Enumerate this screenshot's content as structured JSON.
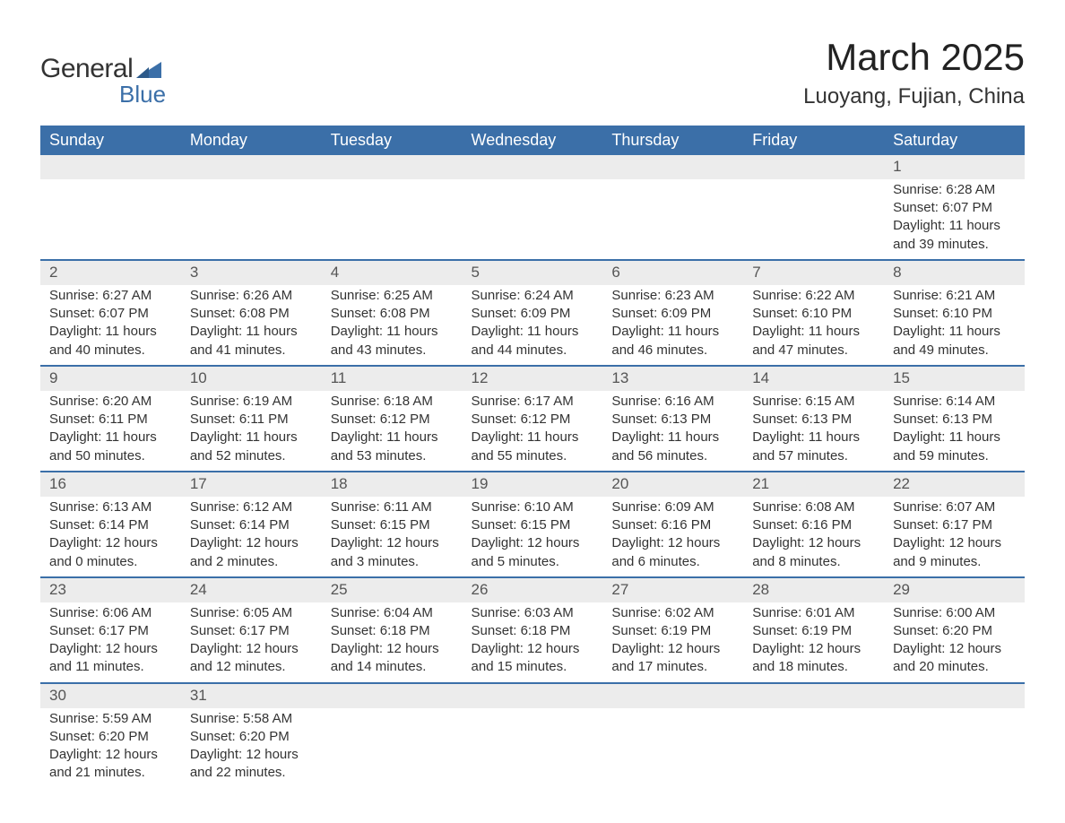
{
  "logo": {
    "text_general": "General",
    "text_blue": "Blue",
    "shape_color": "#3b6fa8"
  },
  "title": "March 2025",
  "location": "Luoyang, Fujian, China",
  "colors": {
    "header_bg": "#3b6fa8",
    "header_text": "#ffffff",
    "row_divider": "#3b6fa8",
    "daynum_bg": "#ececec",
    "body_text": "#333333",
    "background": "#ffffff"
  },
  "typography": {
    "title_fontsize": 42,
    "location_fontsize": 24,
    "header_fontsize": 18,
    "daynum_fontsize": 17,
    "body_fontsize": 15
  },
  "day_headers": [
    "Sunday",
    "Monday",
    "Tuesday",
    "Wednesday",
    "Thursday",
    "Friday",
    "Saturday"
  ],
  "weeks": [
    [
      null,
      null,
      null,
      null,
      null,
      null,
      {
        "n": "1",
        "sunrise": "Sunrise: 6:28 AM",
        "sunset": "Sunset: 6:07 PM",
        "dl1": "Daylight: 11 hours",
        "dl2": "and 39 minutes."
      }
    ],
    [
      {
        "n": "2",
        "sunrise": "Sunrise: 6:27 AM",
        "sunset": "Sunset: 6:07 PM",
        "dl1": "Daylight: 11 hours",
        "dl2": "and 40 minutes."
      },
      {
        "n": "3",
        "sunrise": "Sunrise: 6:26 AM",
        "sunset": "Sunset: 6:08 PM",
        "dl1": "Daylight: 11 hours",
        "dl2": "and 41 minutes."
      },
      {
        "n": "4",
        "sunrise": "Sunrise: 6:25 AM",
        "sunset": "Sunset: 6:08 PM",
        "dl1": "Daylight: 11 hours",
        "dl2": "and 43 minutes."
      },
      {
        "n": "5",
        "sunrise": "Sunrise: 6:24 AM",
        "sunset": "Sunset: 6:09 PM",
        "dl1": "Daylight: 11 hours",
        "dl2": "and 44 minutes."
      },
      {
        "n": "6",
        "sunrise": "Sunrise: 6:23 AM",
        "sunset": "Sunset: 6:09 PM",
        "dl1": "Daylight: 11 hours",
        "dl2": "and 46 minutes."
      },
      {
        "n": "7",
        "sunrise": "Sunrise: 6:22 AM",
        "sunset": "Sunset: 6:10 PM",
        "dl1": "Daylight: 11 hours",
        "dl2": "and 47 minutes."
      },
      {
        "n": "8",
        "sunrise": "Sunrise: 6:21 AM",
        "sunset": "Sunset: 6:10 PM",
        "dl1": "Daylight: 11 hours",
        "dl2": "and 49 minutes."
      }
    ],
    [
      {
        "n": "9",
        "sunrise": "Sunrise: 6:20 AM",
        "sunset": "Sunset: 6:11 PM",
        "dl1": "Daylight: 11 hours",
        "dl2": "and 50 minutes."
      },
      {
        "n": "10",
        "sunrise": "Sunrise: 6:19 AM",
        "sunset": "Sunset: 6:11 PM",
        "dl1": "Daylight: 11 hours",
        "dl2": "and 52 minutes."
      },
      {
        "n": "11",
        "sunrise": "Sunrise: 6:18 AM",
        "sunset": "Sunset: 6:12 PM",
        "dl1": "Daylight: 11 hours",
        "dl2": "and 53 minutes."
      },
      {
        "n": "12",
        "sunrise": "Sunrise: 6:17 AM",
        "sunset": "Sunset: 6:12 PM",
        "dl1": "Daylight: 11 hours",
        "dl2": "and 55 minutes."
      },
      {
        "n": "13",
        "sunrise": "Sunrise: 6:16 AM",
        "sunset": "Sunset: 6:13 PM",
        "dl1": "Daylight: 11 hours",
        "dl2": "and 56 minutes."
      },
      {
        "n": "14",
        "sunrise": "Sunrise: 6:15 AM",
        "sunset": "Sunset: 6:13 PM",
        "dl1": "Daylight: 11 hours",
        "dl2": "and 57 minutes."
      },
      {
        "n": "15",
        "sunrise": "Sunrise: 6:14 AM",
        "sunset": "Sunset: 6:13 PM",
        "dl1": "Daylight: 11 hours",
        "dl2": "and 59 minutes."
      }
    ],
    [
      {
        "n": "16",
        "sunrise": "Sunrise: 6:13 AM",
        "sunset": "Sunset: 6:14 PM",
        "dl1": "Daylight: 12 hours",
        "dl2": "and 0 minutes."
      },
      {
        "n": "17",
        "sunrise": "Sunrise: 6:12 AM",
        "sunset": "Sunset: 6:14 PM",
        "dl1": "Daylight: 12 hours",
        "dl2": "and 2 minutes."
      },
      {
        "n": "18",
        "sunrise": "Sunrise: 6:11 AM",
        "sunset": "Sunset: 6:15 PM",
        "dl1": "Daylight: 12 hours",
        "dl2": "and 3 minutes."
      },
      {
        "n": "19",
        "sunrise": "Sunrise: 6:10 AM",
        "sunset": "Sunset: 6:15 PM",
        "dl1": "Daylight: 12 hours",
        "dl2": "and 5 minutes."
      },
      {
        "n": "20",
        "sunrise": "Sunrise: 6:09 AM",
        "sunset": "Sunset: 6:16 PM",
        "dl1": "Daylight: 12 hours",
        "dl2": "and 6 minutes."
      },
      {
        "n": "21",
        "sunrise": "Sunrise: 6:08 AM",
        "sunset": "Sunset: 6:16 PM",
        "dl1": "Daylight: 12 hours",
        "dl2": "and 8 minutes."
      },
      {
        "n": "22",
        "sunrise": "Sunrise: 6:07 AM",
        "sunset": "Sunset: 6:17 PM",
        "dl1": "Daylight: 12 hours",
        "dl2": "and 9 minutes."
      }
    ],
    [
      {
        "n": "23",
        "sunrise": "Sunrise: 6:06 AM",
        "sunset": "Sunset: 6:17 PM",
        "dl1": "Daylight: 12 hours",
        "dl2": "and 11 minutes."
      },
      {
        "n": "24",
        "sunrise": "Sunrise: 6:05 AM",
        "sunset": "Sunset: 6:17 PM",
        "dl1": "Daylight: 12 hours",
        "dl2": "and 12 minutes."
      },
      {
        "n": "25",
        "sunrise": "Sunrise: 6:04 AM",
        "sunset": "Sunset: 6:18 PM",
        "dl1": "Daylight: 12 hours",
        "dl2": "and 14 minutes."
      },
      {
        "n": "26",
        "sunrise": "Sunrise: 6:03 AM",
        "sunset": "Sunset: 6:18 PM",
        "dl1": "Daylight: 12 hours",
        "dl2": "and 15 minutes."
      },
      {
        "n": "27",
        "sunrise": "Sunrise: 6:02 AM",
        "sunset": "Sunset: 6:19 PM",
        "dl1": "Daylight: 12 hours",
        "dl2": "and 17 minutes."
      },
      {
        "n": "28",
        "sunrise": "Sunrise: 6:01 AM",
        "sunset": "Sunset: 6:19 PM",
        "dl1": "Daylight: 12 hours",
        "dl2": "and 18 minutes."
      },
      {
        "n": "29",
        "sunrise": "Sunrise: 6:00 AM",
        "sunset": "Sunset: 6:20 PM",
        "dl1": "Daylight: 12 hours",
        "dl2": "and 20 minutes."
      }
    ],
    [
      {
        "n": "30",
        "sunrise": "Sunrise: 5:59 AM",
        "sunset": "Sunset: 6:20 PM",
        "dl1": "Daylight: 12 hours",
        "dl2": "and 21 minutes."
      },
      {
        "n": "31",
        "sunrise": "Sunrise: 5:58 AM",
        "sunset": "Sunset: 6:20 PM",
        "dl1": "Daylight: 12 hours",
        "dl2": "and 22 minutes."
      },
      null,
      null,
      null,
      null,
      null
    ]
  ]
}
